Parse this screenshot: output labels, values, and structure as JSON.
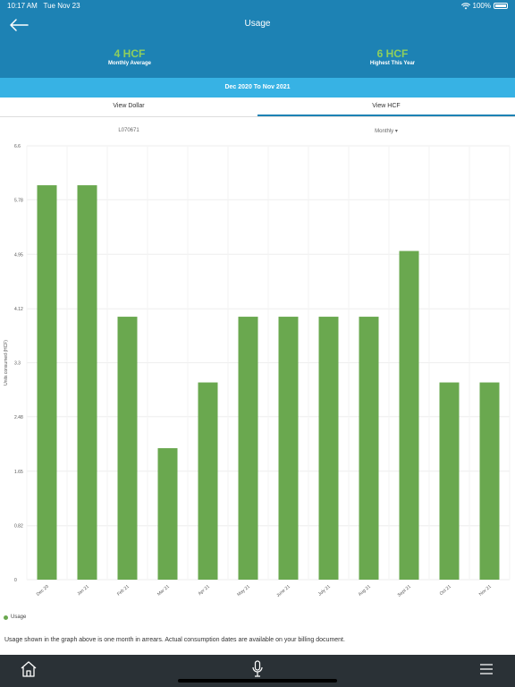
{
  "status_bar": {
    "time": "10:17 AM",
    "date": "Tue Nov 23",
    "battery": "100%"
  },
  "header": {
    "title": "Usage",
    "stats": [
      {
        "value": "4 HCF",
        "label": "Monthly Average"
      },
      {
        "value": "6 HCF",
        "label": "Highest This Year"
      }
    ]
  },
  "range": "Dec 2020 To Nov 2021",
  "tabs": [
    {
      "label": "View Dollar",
      "active": false
    },
    {
      "label": "View HCF",
      "active": true
    }
  ],
  "filters": {
    "meter": "L070671",
    "period": "Monthly ▾"
  },
  "colors": {
    "header": "#1d82b4",
    "range_bar": "#37b2e4",
    "accent_green": "#8fcf5d",
    "bar": "#6aa84f",
    "nav": "#2a3136"
  },
  "chart_data": {
    "type": "bar",
    "categories": [
      "Dec 20",
      "Jan 21",
      "Feb 21",
      "Mar 21",
      "Apr 21",
      "May 21",
      "June 21",
      "July 21",
      "Aug 21",
      "Sept 21",
      "Oct 21",
      "Nov 21"
    ],
    "series": [
      {
        "name": "Usage",
        "values": [
          6,
          6,
          4,
          2,
          3,
          4,
          4,
          4,
          4,
          5,
          3,
          3
        ]
      }
    ],
    "yticks": [
      "0",
      "0.82",
      "1.65",
      "2.48",
      "3.3",
      "4.12",
      "4.95",
      "5.78",
      "6.6"
    ],
    "ylim": [
      0,
      6.6
    ],
    "ylabel": "Units consumed (HCF)",
    "xlabel": "",
    "grid": true,
    "legend": "bottom-left"
  },
  "note": "Usage shown in the graph above is one month in arrears. Actual consumption dates are available on your billing document.",
  "nav": {
    "home_icon": "home-icon",
    "mic_icon": "microphone-icon",
    "menu_icon": "menu-icon"
  }
}
